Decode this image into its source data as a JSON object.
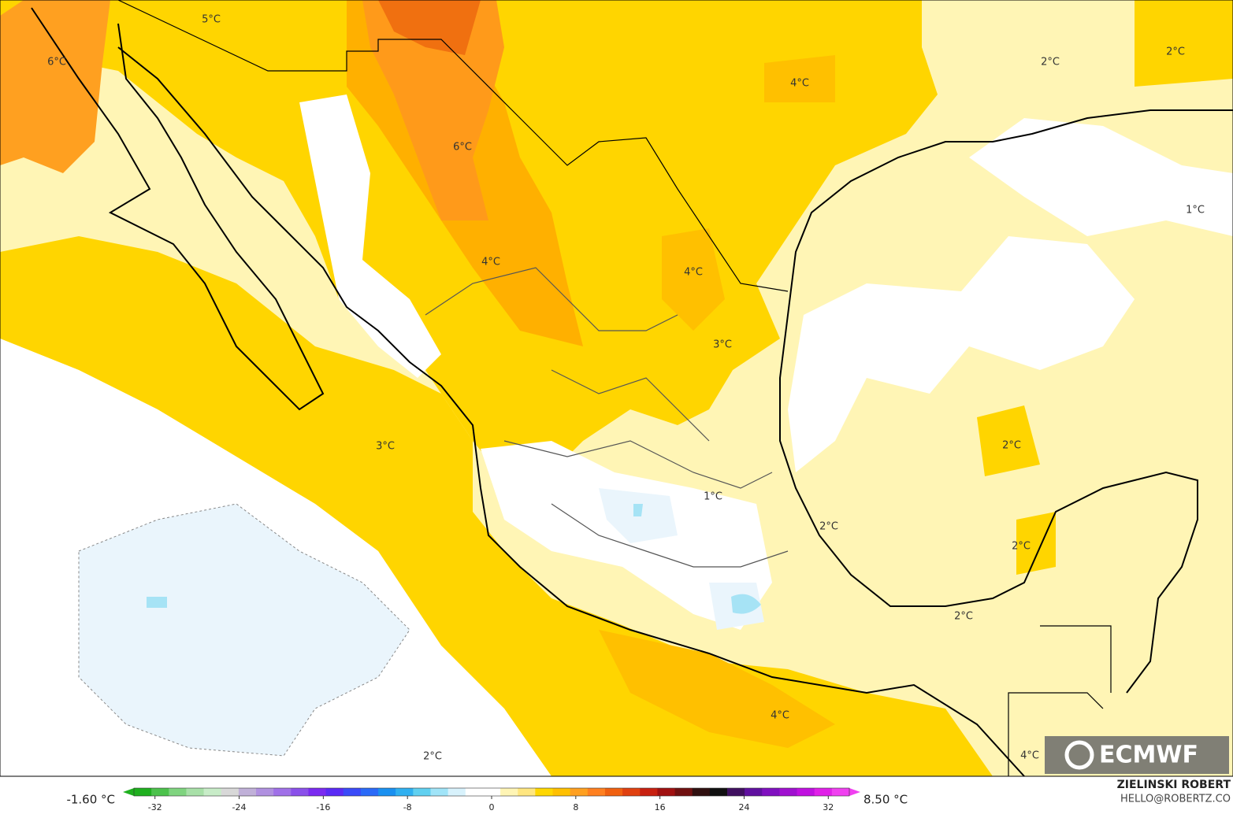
{
  "map": {
    "contour_labels": [
      "5°C",
      "6°C",
      "6°C",
      "4°C",
      "2°C",
      "2°C",
      "1°C",
      "4°C",
      "4°C",
      "3°C",
      "3°C",
      "2°C",
      "1°C",
      "2°C",
      "2°C",
      "2°C",
      "4°C",
      "2°C",
      "4°C"
    ],
    "logo": "ECMWF"
  },
  "colorbar": {
    "min_label": "-1.60 °C",
    "max_label": "8.50 °C",
    "lim": [
      -34,
      34
    ],
    "ticks": [
      -32,
      -24,
      -16,
      -8,
      0,
      8,
      16,
      24,
      32
    ],
    "colors": [
      "#1fb01f",
      "#4cc24c",
      "#7fd47f",
      "#a8e0a8",
      "#c8ecc8",
      "#d8d8d8",
      "#c0b0d8",
      "#b090e0",
      "#a070e8",
      "#8a50ea",
      "#7a2af0",
      "#5a2af5",
      "#3a4af8",
      "#2a6af8",
      "#1a90f0",
      "#30b0f0",
      "#60d0f0",
      "#a0e4f8",
      "#d8f2fc",
      "#ffffff",
      "#ffffff",
      "#fff5b5",
      "#ffe680",
      "#ffd700",
      "#ffc000",
      "#ffa020",
      "#ff8020",
      "#f06010",
      "#e04010",
      "#c82010",
      "#a01010",
      "#701010",
      "#301010",
      "#101010",
      "#401060",
      "#6010a0",
      "#8010c0",
      "#a010d0",
      "#c010e0",
      "#e020e8",
      "#f040f0"
    ]
  },
  "credit": {
    "name": "ZIELINSKI ROBERT",
    "email": "HELLO@ROBERTZ.CO"
  }
}
